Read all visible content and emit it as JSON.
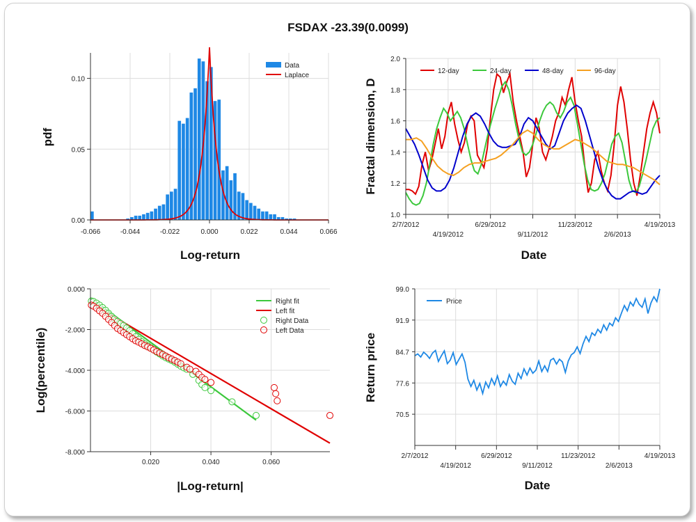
{
  "title": "FSDAX -23.39(0.0099)",
  "colors": {
    "histogram": "#1e88e5",
    "laplace": "#e00000",
    "d12": "#e00000",
    "d24": "#3cc83c",
    "d48": "#0000cc",
    "d96": "#f5a020",
    "right": "#3cc83c",
    "left": "#e00000",
    "price": "#1e88e5",
    "grid": "#dcdcdc"
  },
  "chart_data": [
    {
      "type": "bar",
      "panel": "histogram",
      "xlabel": "Log-return",
      "ylabel": "pdf",
      "xlim": [
        -0.066,
        0.066
      ],
      "ylim": [
        0,
        0.118
      ],
      "xticks": [
        "-0.066",
        "-0.044",
        "-0.022",
        "0.000",
        "0.022",
        "0.044",
        "0.066"
      ],
      "xtick_values": [
        -0.066,
        -0.044,
        -0.022,
        0.0,
        0.022,
        0.044,
        0.066
      ],
      "yticks": [
        "0.00",
        "0.05",
        "0.10"
      ],
      "ytick_values": [
        0.0,
        0.05,
        0.1
      ],
      "legend": [
        "Data",
        "Laplace"
      ],
      "legend_position": "top-right",
      "bin_width": 0.0022,
      "bin_centers": [
        -0.0651,
        -0.0629,
        -0.0607,
        -0.0585,
        -0.0563,
        -0.0541,
        -0.0519,
        -0.0497,
        -0.0475,
        -0.0453,
        -0.0431,
        -0.0409,
        -0.0387,
        -0.0365,
        -0.0343,
        -0.0321,
        -0.0299,
        -0.0277,
        -0.0255,
        -0.0233,
        -0.0211,
        -0.0189,
        -0.0167,
        -0.0145,
        -0.0123,
        -0.0101,
        -0.0079,
        -0.0057,
        -0.0035,
        -0.0013,
        0.0009,
        0.0031,
        0.0053,
        0.0075,
        0.0097,
        0.0119,
        0.0141,
        0.0163,
        0.0185,
        0.0207,
        0.0229,
        0.0251,
        0.0273,
        0.0295,
        0.0317,
        0.0339,
        0.0361,
        0.0383,
        0.0405,
        0.0427,
        0.0449,
        0.0471
      ],
      "values": [
        0.006,
        0,
        0,
        0,
        0,
        0,
        0,
        0,
        0,
        0.001,
        0.002,
        0.003,
        0.003,
        0.004,
        0.005,
        0.006,
        0.008,
        0.01,
        0.011,
        0.018,
        0.02,
        0.022,
        0.07,
        0.068,
        0.072,
        0.09,
        0.093,
        0.114,
        0.112,
        0.098,
        0.108,
        0.084,
        0.085,
        0.035,
        0.038,
        0.028,
        0.033,
        0.02,
        0.019,
        0.014,
        0.012,
        0.01,
        0.008,
        0.006,
        0.006,
        0.004,
        0.004,
        0.002,
        0.002,
        0.001,
        0.001,
        0.001
      ],
      "laplace": {
        "mu": 0.0,
        "b": 0.0042,
        "label": "Laplace"
      }
    },
    {
      "type": "line",
      "panel": "fractal",
      "xlabel": "Date",
      "ylabel": "Fractal dimension, D",
      "ylim": [
        1.0,
        2.0
      ],
      "yticks": [
        "1.0",
        "1.2",
        "1.4",
        "1.6",
        "1.8",
        "2.0"
      ],
      "ytick_values": [
        1.0,
        1.2,
        1.4,
        1.6,
        1.8,
        2.0
      ],
      "xticks_upper": [
        "2/7/2012",
        "6/29/2012",
        "11/23/2012",
        "4/19/2013"
      ],
      "xticks_lower": [
        "4/19/2012",
        "9/11/2012",
        "2/6/2013"
      ],
      "legend_position": "top-left",
      "series": [
        {
          "name": "12-day",
          "color_key": "d12",
          "values": [
            1.16,
            1.16,
            1.15,
            1.13,
            1.18,
            1.32,
            1.4,
            1.28,
            1.35,
            1.45,
            1.55,
            1.42,
            1.5,
            1.65,
            1.72,
            1.58,
            1.48,
            1.4,
            1.46,
            1.58,
            1.63,
            1.6,
            1.38,
            1.34,
            1.3,
            1.42,
            1.62,
            1.8,
            1.9,
            1.88,
            1.78,
            1.85,
            1.9,
            1.72,
            1.6,
            1.5,
            1.4,
            1.24,
            1.3,
            1.45,
            1.62,
            1.55,
            1.4,
            1.35,
            1.42,
            1.5,
            1.6,
            1.65,
            1.75,
            1.7,
            1.8,
            1.88,
            1.72,
            1.6,
            1.5,
            1.3,
            1.14,
            1.2,
            1.35,
            1.4,
            1.28,
            1.2,
            1.15,
            1.25,
            1.45,
            1.7,
            1.82,
            1.72,
            1.55,
            1.35,
            1.2,
            1.12,
            1.25,
            1.4,
            1.55,
            1.65,
            1.72,
            1.65,
            1.52
          ]
        },
        {
          "name": "24-day",
          "color_key": "d24",
          "values": [
            1.14,
            1.1,
            1.07,
            1.06,
            1.07,
            1.12,
            1.2,
            1.32,
            1.45,
            1.55,
            1.62,
            1.68,
            1.65,
            1.6,
            1.63,
            1.66,
            1.62,
            1.55,
            1.45,
            1.35,
            1.28,
            1.26,
            1.32,
            1.42,
            1.52,
            1.6,
            1.68,
            1.75,
            1.82,
            1.85,
            1.8,
            1.7,
            1.58,
            1.48,
            1.4,
            1.38,
            1.4,
            1.45,
            1.52,
            1.6,
            1.66,
            1.7,
            1.72,
            1.7,
            1.65,
            1.62,
            1.66,
            1.72,
            1.75,
            1.7,
            1.58,
            1.45,
            1.32,
            1.22,
            1.16,
            1.15,
            1.16,
            1.2,
            1.26,
            1.35,
            1.45,
            1.5,
            1.52,
            1.46,
            1.34,
            1.22,
            1.15,
            1.14,
            1.18,
            1.26,
            1.35,
            1.45,
            1.55,
            1.6,
            1.62
          ]
        },
        {
          "name": "48-day",
          "color_key": "d48",
          "values": [
            1.55,
            1.5,
            1.45,
            1.38,
            1.3,
            1.22,
            1.17,
            1.15,
            1.15,
            1.17,
            1.22,
            1.3,
            1.4,
            1.5,
            1.58,
            1.63,
            1.65,
            1.63,
            1.58,
            1.52,
            1.47,
            1.44,
            1.43,
            1.43,
            1.44,
            1.45,
            1.5,
            1.58,
            1.62,
            1.6,
            1.55,
            1.5,
            1.45,
            1.42,
            1.44,
            1.52,
            1.6,
            1.65,
            1.68,
            1.7,
            1.68,
            1.6,
            1.5,
            1.4,
            1.3,
            1.22,
            1.16,
            1.12,
            1.1,
            1.1,
            1.12,
            1.14,
            1.15,
            1.14,
            1.13,
            1.14,
            1.18,
            1.22,
            1.25
          ]
        },
        {
          "name": "96-day",
          "color_key": "d96",
          "values": [
            1.48,
            1.48,
            1.49,
            1.47,
            1.42,
            1.36,
            1.31,
            1.28,
            1.26,
            1.25,
            1.27,
            1.3,
            1.32,
            1.33,
            1.33,
            1.34,
            1.35,
            1.36,
            1.38,
            1.41,
            1.44,
            1.48,
            1.52,
            1.54,
            1.52,
            1.48,
            1.45,
            1.43,
            1.42,
            1.42,
            1.44,
            1.46,
            1.48,
            1.47,
            1.45,
            1.43,
            1.4,
            1.37,
            1.34,
            1.33,
            1.32,
            1.32,
            1.31,
            1.3,
            1.28,
            1.26,
            1.24,
            1.22,
            1.19
          ]
        }
      ]
    },
    {
      "type": "scatter",
      "panel": "tail",
      "xlabel": "|Log-return|",
      "ylabel": "Log(percentile)",
      "xlim": [
        0.0,
        0.0795
      ],
      "ylim": [
        -8.0,
        0.0
      ],
      "xticks": [
        "0.020",
        "0.040",
        "0.060"
      ],
      "xtick_values": [
        0.02,
        0.04,
        0.06
      ],
      "yticks": [
        "0.000",
        "-2.000",
        "-4.000",
        "-6.000",
        "-8.000"
      ],
      "ytick_values": [
        0.0,
        -2.0,
        -4.0,
        -6.0,
        -8.0
      ],
      "legend": [
        "Right fit",
        "Left fit",
        "Right Data",
        "Left Data"
      ],
      "legend_position": "top-right",
      "right_fit": {
        "x": [
          0.0,
          0.055
        ],
        "y": [
          -0.45,
          -6.45
        ]
      },
      "left_fit": {
        "x": [
          0.0,
          0.0795
        ],
        "y": [
          -0.7,
          -7.58
        ]
      },
      "right_data": {
        "x": [
          0.0003,
          0.001,
          0.002,
          0.003,
          0.004,
          0.005,
          0.006,
          0.007,
          0.008,
          0.009,
          0.01,
          0.011,
          0.012,
          0.013,
          0.014,
          0.015,
          0.016,
          0.017,
          0.018,
          0.019,
          0.02,
          0.021,
          0.022,
          0.023,
          0.024,
          0.025,
          0.026,
          0.027,
          0.028,
          0.029,
          0.03,
          0.031,
          0.032,
          0.034,
          0.036,
          0.037,
          0.038,
          0.04,
          0.047,
          0.055
        ],
        "y": [
          -0.6,
          -0.62,
          -0.7,
          -0.8,
          -0.92,
          -1.05,
          -1.2,
          -1.35,
          -1.48,
          -1.6,
          -1.7,
          -1.8,
          -1.92,
          -2.05,
          -2.2,
          -2.35,
          -2.48,
          -2.6,
          -2.7,
          -2.8,
          -2.9,
          -3.0,
          -3.1,
          -3.2,
          -3.3,
          -3.38,
          -3.45,
          -3.52,
          -3.6,
          -3.7,
          -3.8,
          -3.88,
          -3.95,
          -4.2,
          -4.5,
          -4.7,
          -4.85,
          -5.0,
          -5.55,
          -6.22
        ]
      },
      "left_data": {
        "x": [
          0.0003,
          0.001,
          0.002,
          0.003,
          0.004,
          0.005,
          0.006,
          0.007,
          0.008,
          0.009,
          0.01,
          0.011,
          0.012,
          0.013,
          0.014,
          0.015,
          0.016,
          0.017,
          0.018,
          0.019,
          0.02,
          0.021,
          0.022,
          0.023,
          0.024,
          0.025,
          0.026,
          0.027,
          0.028,
          0.029,
          0.03,
          0.032,
          0.033,
          0.035,
          0.036,
          0.037,
          0.038,
          0.04,
          0.061,
          0.0615,
          0.062,
          0.0795
        ],
        "y": [
          -0.8,
          -0.85,
          -0.95,
          -1.08,
          -1.2,
          -1.35,
          -1.5,
          -1.65,
          -1.8,
          -1.95,
          -2.05,
          -2.15,
          -2.25,
          -2.35,
          -2.45,
          -2.55,
          -2.62,
          -2.7,
          -2.78,
          -2.85,
          -2.92,
          -3.0,
          -3.08,
          -3.15,
          -3.22,
          -3.3,
          -3.38,
          -3.45,
          -3.52,
          -3.6,
          -3.68,
          -3.85,
          -3.95,
          -4.05,
          -4.2,
          -4.35,
          -4.45,
          -4.6,
          -4.85,
          -5.15,
          -5.5,
          -6.22
        ]
      }
    },
    {
      "type": "line",
      "panel": "price",
      "xlabel": "Date",
      "ylabel": "Return price",
      "ylim": [
        63.4,
        99.0
      ],
      "yticks": [
        "99.0",
        "91.9",
        "84.7",
        "77.6",
        "70.5"
      ],
      "ytick_values": [
        99.0,
        91.9,
        84.7,
        77.6,
        70.5
      ],
      "xticks_upper": [
        "2/7/2012",
        "6/29/2012",
        "11/23/2012",
        "4/19/2013"
      ],
      "xticks_lower": [
        "4/19/2012",
        "9/11/2012",
        "2/6/2013"
      ],
      "legend_position": "top-left",
      "series": [
        {
          "name": "Price",
          "color_key": "price",
          "values": [
            83.8,
            84.2,
            83.5,
            84.6,
            84.0,
            83.2,
            84.4,
            85.0,
            82.5,
            83.8,
            84.9,
            82.0,
            82.8,
            84.5,
            81.8,
            83.0,
            84.2,
            82.3,
            78.5,
            76.8,
            78.2,
            76.0,
            77.5,
            75.2,
            77.8,
            76.5,
            78.6,
            77.2,
            79.2,
            76.8,
            78.0,
            77.1,
            79.5,
            78.0,
            77.3,
            79.8,
            78.6,
            80.8,
            79.4,
            81.0,
            79.8,
            80.5,
            82.6,
            80.2,
            81.5,
            80.2,
            82.8,
            83.2,
            81.9,
            83.0,
            82.4,
            80.0,
            82.6,
            84.0,
            84.5,
            85.8,
            84.3,
            86.5,
            88.2,
            87.0,
            89.0,
            88.4,
            89.8,
            89.0,
            90.8,
            89.6,
            91.2,
            90.6,
            92.4,
            91.6,
            93.5,
            95.2,
            94.0,
            96.0,
            95.1,
            96.8,
            95.5,
            94.8,
            96.7,
            93.4,
            95.8,
            97.2,
            96.1,
            99.0
          ]
        }
      ]
    }
  ]
}
